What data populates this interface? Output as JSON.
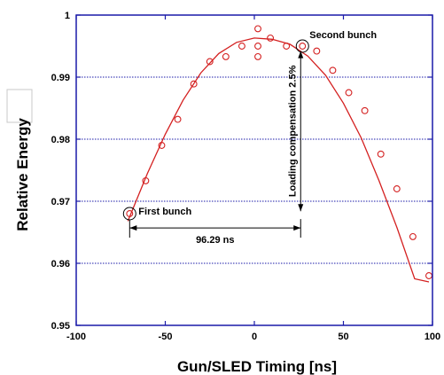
{
  "chart_data": {
    "type": "scatter",
    "xlabel": "Gun/SLED Timing [ns]",
    "ylabel": "Relative Energy",
    "xlim": [
      -100,
      100
    ],
    "ylim": [
      0.95,
      1.0
    ],
    "x_ticks": [
      "-100",
      "-50",
      "0",
      "50",
      "100"
    ],
    "y_ticks": [
      "0.95",
      "0.96",
      "0.97",
      "0.98",
      "0.99",
      "1"
    ],
    "grid": "horizontal dotted",
    "colors": {
      "data": "#d42020",
      "axes": "#1a1aa8",
      "grid": "#1a1aa8",
      "annotation": "#000000"
    },
    "series": [
      {
        "markers": "open-circle",
        "points": [
          [
            -70,
            0.968
          ],
          [
            -61,
            0.9733
          ],
          [
            -52,
            0.979
          ],
          [
            -43,
            0.9832
          ],
          [
            -34,
            0.9889
          ],
          [
            -25,
            0.9925
          ],
          [
            -16,
            0.9933
          ],
          [
            -7,
            0.995
          ],
          [
            2,
            0.9978
          ],
          [
            2,
            0.995
          ],
          [
            2,
            0.9933
          ],
          [
            9,
            0.9963
          ],
          [
            18,
            0.995
          ],
          [
            27,
            0.995
          ],
          [
            35,
            0.9942
          ],
          [
            44,
            0.9911
          ],
          [
            53,
            0.9875
          ],
          [
            62,
            0.9846
          ],
          [
            71,
            0.9776
          ],
          [
            80,
            0.972
          ],
          [
            89,
            0.9643
          ],
          [
            98,
            0.958
          ]
        ]
      },
      {
        "style": "fit-line",
        "points": [
          [
            -71,
            0.9668
          ],
          [
            -60,
            0.9745
          ],
          [
            -50,
            0.9808
          ],
          [
            -40,
            0.9863
          ],
          [
            -30,
            0.9907
          ],
          [
            -20,
            0.9938
          ],
          [
            -10,
            0.9956
          ],
          [
            0,
            0.9963
          ],
          [
            10,
            0.9961
          ],
          [
            20,
            0.9953
          ],
          [
            30,
            0.9934
          ],
          [
            40,
            0.9903
          ],
          [
            50,
            0.9858
          ],
          [
            60,
            0.9802
          ],
          [
            70,
            0.9733
          ],
          [
            80,
            0.9658
          ],
          [
            90,
            0.9575
          ],
          [
            98,
            0.957
          ]
        ]
      }
    ],
    "annotations": {
      "first_bunch": {
        "label": "First bunch",
        "x": -70,
        "y": 0.968
      },
      "second_bunch": {
        "label": "Second bunch",
        "x": 27,
        "y": 0.995
      },
      "spacing": {
        "label": "96.29 ns",
        "x_from": -70,
        "x_to": 26,
        "y": 0.9657
      },
      "compensation": {
        "label": "Loading compensation 2.5%",
        "x": 26,
        "y_from": 0.9942,
        "y_to": 0.9684
      }
    }
  }
}
